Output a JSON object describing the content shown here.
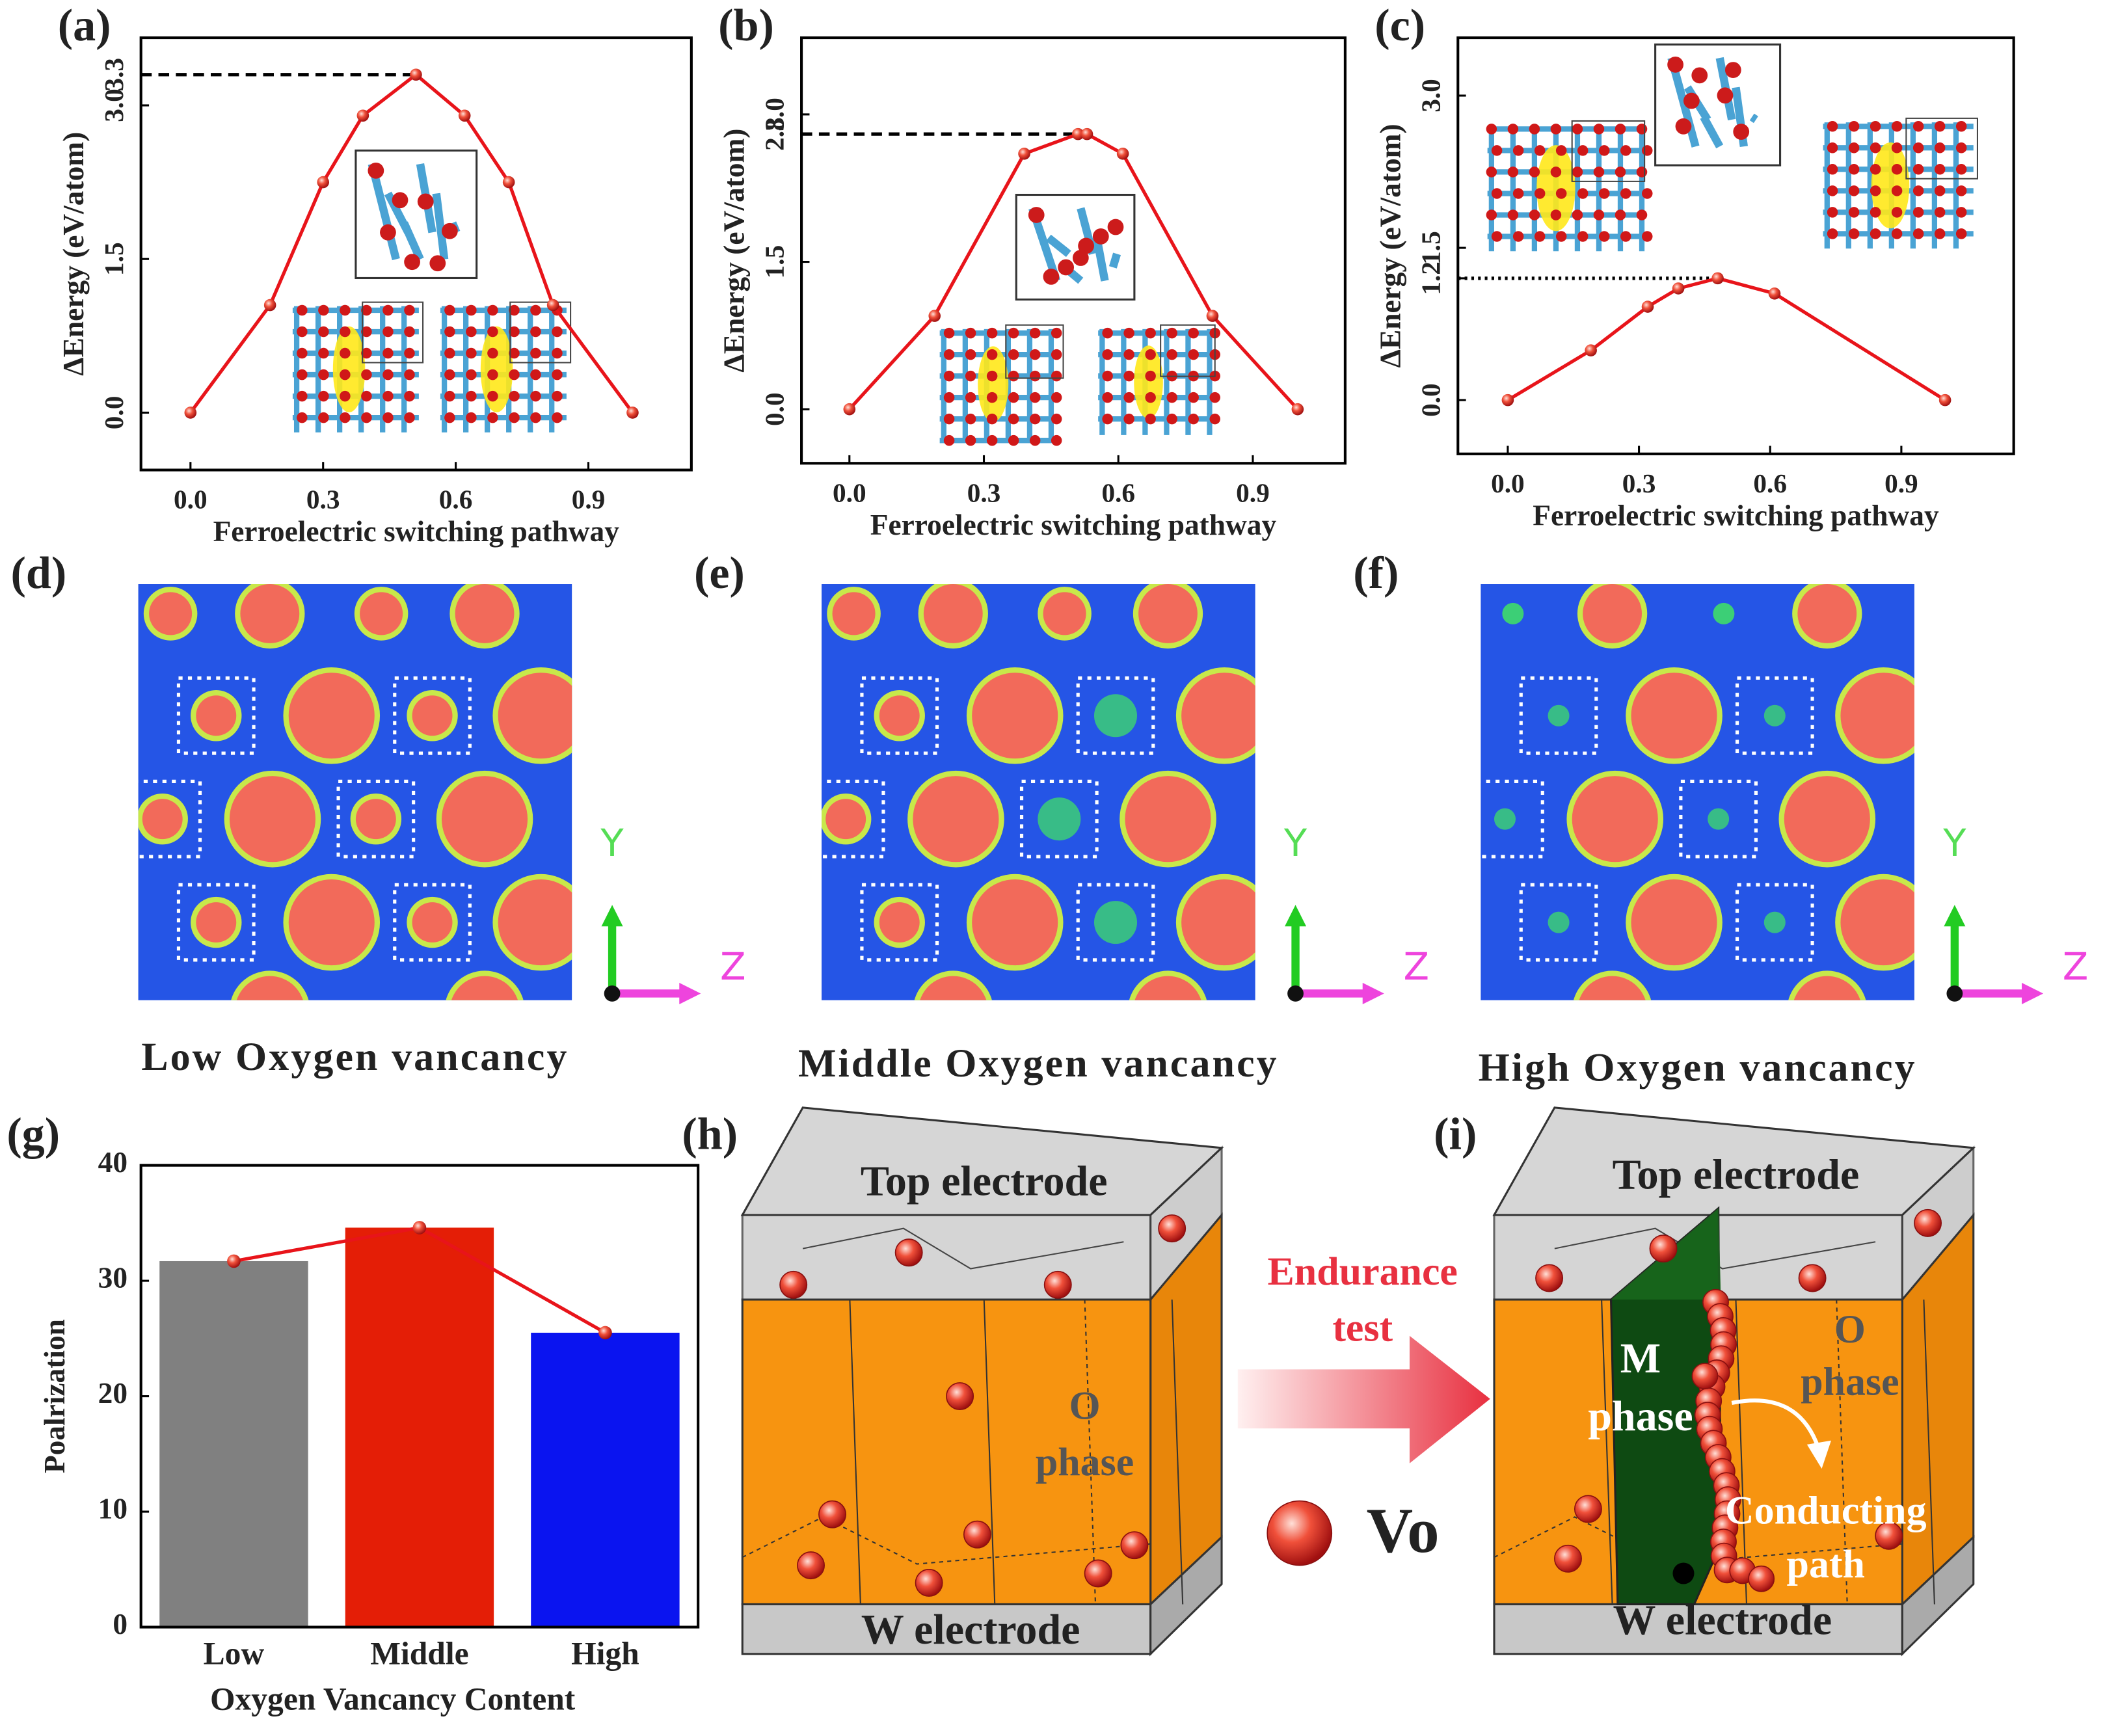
{
  "chart_data": [
    {
      "type": "line",
      "panel": "(a)",
      "color": "#e8141a",
      "x": [
        0,
        0.18,
        0.3,
        0.39,
        0.51,
        0.62,
        0.72,
        0.82,
        1.0
      ],
      "values": [
        0,
        1.05,
        2.25,
        2.9,
        3.3,
        2.9,
        2.25,
        1.05,
        0
      ],
      "xlabel": "Ferroelectric switching pathway",
      "ylabel": "ΔEnergy (eV/atom)",
      "xlim": [
        -0.112,
        1.133
      ],
      "ylim": [
        -0.56,
        3.66
      ],
      "xticks": [
        {
          "value": 0,
          "label": "0.0"
        },
        {
          "value": 0.3,
          "label": "0.3"
        },
        {
          "value": 0.6,
          "label": "0.6"
        },
        {
          "value": 0.9,
          "label": "0.9"
        }
      ],
      "yticks": [
        {
          "value": 0,
          "label": "0.0"
        },
        {
          "value": 1.5,
          "label": "1.5"
        },
        {
          "value": 3,
          "label": "3.0"
        },
        {
          "value": 3.3,
          "label": "3.3"
        }
      ],
      "guide": {
        "y": 3.3,
        "dash": "dashed"
      }
    },
    {
      "type": "line",
      "panel": "(b)",
      "color": "#e8141a",
      "x": [
        0,
        0.19,
        0.39,
        0.51,
        0.53,
        0.61,
        0.81,
        1.0
      ],
      "values": [
        0,
        0.95,
        2.6,
        2.8,
        2.8,
        2.6,
        0.95,
        0
      ],
      "xlabel": "Ferroelectric switching pathway",
      "ylabel": "ΔEnergy (eV/atom)",
      "xlim": [
        -0.107,
        1.106
      ],
      "ylim": [
        -0.55,
        3.78
      ],
      "xticks": [
        {
          "value": 0,
          "label": "0.0"
        },
        {
          "value": 0.3,
          "label": "0.3"
        },
        {
          "value": 0.6,
          "label": "0.6"
        },
        {
          "value": 0.9,
          "label": "0.9"
        }
      ],
      "yticks": [
        {
          "value": 0,
          "label": "0.0"
        },
        {
          "value": 1.5,
          "label": "1.5"
        },
        {
          "value": 2.8,
          "label": "2.8"
        },
        {
          "value": 3,
          "label": "3.0"
        }
      ],
      "guide": {
        "y": 2.8,
        "dash": "dashed"
      }
    },
    {
      "type": "line",
      "panel": "(c)",
      "color": "#e8141a",
      "x": [
        0,
        0.19,
        0.32,
        0.39,
        0.48,
        0.61,
        1.0
      ],
      "values": [
        0,
        0.49,
        0.92,
        1.1,
        1.2,
        1.05,
        0
      ],
      "xlabel": "Ferroelectric switching pathway",
      "ylabel": "ΔEnergy (eV/atom)",
      "xlim": [
        -0.114,
        1.157
      ],
      "ylim": [
        -0.53,
        3.57
      ],
      "xticks": [
        {
          "value": 0,
          "label": "0.0"
        },
        {
          "value": 0.3,
          "label": "0.3"
        },
        {
          "value": 0.6,
          "label": "0.6"
        },
        {
          "value": 0.9,
          "label": "0.9"
        }
      ],
      "yticks": [
        {
          "value": 0,
          "label": "0.0"
        },
        {
          "value": 1.2,
          "label": "1.2"
        },
        {
          "value": 1.5,
          "label": "1.5"
        },
        {
          "value": 3,
          "label": "3.0"
        }
      ],
      "guide": {
        "y": 1.2,
        "dash": "dotted"
      }
    },
    {
      "type": "bar",
      "panel": "(g)",
      "categories": [
        "Low",
        "Middle",
        "High"
      ],
      "values": [
        31.7,
        34.6,
        25.5
      ],
      "colors": [
        "#808080",
        "#e41e06",
        "#0a14f0"
      ],
      "line_color": "#e8141a",
      "xlabel": "Oxygen Vancancy Content",
      "ylabel": "Poalrization",
      "ylim": [
        0,
        40
      ],
      "yticks": [
        0,
        10,
        20,
        30,
        40
      ]
    }
  ],
  "maps": [
    {
      "panel": "(d)",
      "caption": "Low Oxygen vancancy",
      "axes": [
        "Y",
        "Z"
      ]
    },
    {
      "panel": "(e)",
      "caption": "Middle Oxygen vancancy",
      "axes": [
        "Y",
        "Z"
      ]
    },
    {
      "panel": "(f)",
      "caption": "High Oxygen vancancy",
      "axes": [
        "Y",
        "Z"
      ]
    }
  ],
  "schematics": {
    "h": {
      "panel": "(h)",
      "top": "Top electrode",
      "bottom": "W electrode",
      "phase": [
        "O",
        "phase"
      ]
    },
    "arrow": [
      "Endurance",
      "test"
    ],
    "legend": "Vo",
    "i": {
      "panel": "(i)",
      "top": "Top electrode",
      "bottom": "W electrode",
      "m_phase": [
        "M",
        "phase"
      ],
      "o_phase": [
        "O",
        "phase"
      ],
      "path": [
        "Conducting",
        "path"
      ]
    }
  }
}
